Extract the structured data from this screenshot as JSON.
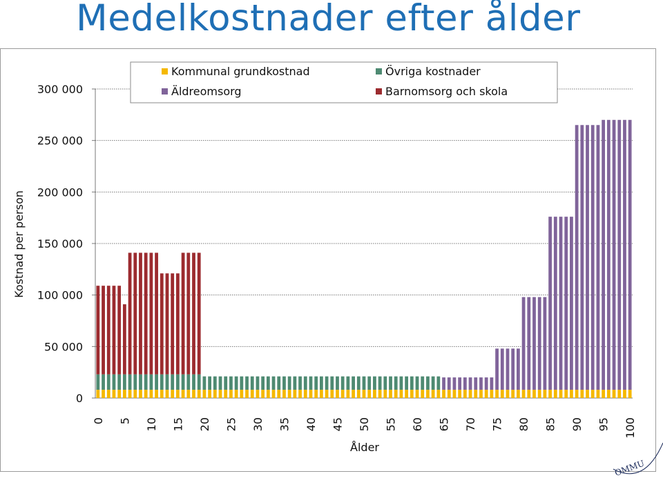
{
  "title": "Medelkostnader efter ålder",
  "chart_data": {
    "type": "bar",
    "stacked": true,
    "x": [
      0,
      1,
      2,
      3,
      4,
      5,
      6,
      7,
      8,
      9,
      10,
      11,
      12,
      13,
      14,
      15,
      16,
      17,
      18,
      19,
      20,
      21,
      22,
      23,
      24,
      25,
      26,
      27,
      28,
      29,
      30,
      31,
      32,
      33,
      34,
      35,
      36,
      37,
      38,
      39,
      40,
      41,
      42,
      43,
      44,
      45,
      46,
      47,
      48,
      49,
      50,
      51,
      52,
      53,
      54,
      55,
      56,
      57,
      58,
      59,
      60,
      61,
      62,
      63,
      64,
      65,
      66,
      67,
      68,
      69,
      70,
      71,
      72,
      73,
      74,
      75,
      76,
      77,
      78,
      79,
      80,
      81,
      82,
      83,
      84,
      85,
      86,
      87,
      88,
      89,
      90,
      91,
      92,
      93,
      94,
      95,
      96,
      97,
      98,
      99,
      100
    ],
    "xticks": [
      "0",
      "5",
      "10",
      "15",
      "20",
      "25",
      "30",
      "35",
      "40",
      "45",
      "50",
      "55",
      "60",
      "65",
      "70",
      "75",
      "80",
      "85",
      "90",
      "95",
      "100"
    ],
    "xlabel": "Ålder",
    "ylabel": "Kostnad per person",
    "ylim": [
      0,
      300000
    ],
    "yticks": [
      "0",
      "50 000",
      "100 000",
      "150 000",
      "200 000",
      "250 000",
      "300 000"
    ],
    "ytick_values": [
      0,
      50000,
      100000,
      150000,
      200000,
      250000,
      300000
    ],
    "grid": "horizontal dotted",
    "legend_position": "top",
    "series": [
      {
        "name": "Kommunal grundkostnad",
        "color": "#f5b800",
        "values": [
          8000,
          8000,
          8000,
          8000,
          8000,
          8000,
          8000,
          8000,
          8000,
          8000,
          8000,
          8000,
          8000,
          8000,
          8000,
          8000,
          8000,
          8000,
          8000,
          8000,
          8000,
          8000,
          8000,
          8000,
          8000,
          8000,
          8000,
          8000,
          8000,
          8000,
          8000,
          8000,
          8000,
          8000,
          8000,
          8000,
          8000,
          8000,
          8000,
          8000,
          8000,
          8000,
          8000,
          8000,
          8000,
          8000,
          8000,
          8000,
          8000,
          8000,
          8000,
          8000,
          8000,
          8000,
          8000,
          8000,
          8000,
          8000,
          8000,
          8000,
          8000,
          8000,
          8000,
          8000,
          8000,
          8000,
          8000,
          8000,
          8000,
          8000,
          8000,
          8000,
          8000,
          8000,
          8000,
          8000,
          8000,
          8000,
          8000,
          8000,
          8000,
          8000,
          8000,
          8000,
          8000,
          8000,
          8000,
          8000,
          8000,
          8000,
          8000,
          8000,
          8000,
          8000,
          8000,
          8000,
          8000,
          8000,
          8000,
          8000,
          8000
        ]
      },
      {
        "name": "Övriga kostnader",
        "color": "#4e8a72",
        "values": [
          15000,
          15000,
          15000,
          15000,
          15000,
          15000,
          15000,
          15000,
          15000,
          15000,
          15000,
          15000,
          15000,
          15000,
          15000,
          15000,
          15000,
          15000,
          15000,
          15000,
          13000,
          13000,
          13000,
          13000,
          13000,
          13000,
          13000,
          13000,
          13000,
          13000,
          13000,
          13000,
          13000,
          13000,
          13000,
          13000,
          13000,
          13000,
          13000,
          13000,
          13000,
          13000,
          13000,
          13000,
          13000,
          13000,
          13000,
          13000,
          13000,
          13000,
          13000,
          13000,
          13000,
          13000,
          13000,
          13000,
          13000,
          13000,
          13000,
          13000,
          13000,
          13000,
          13000,
          13000,
          13000,
          0,
          0,
          0,
          0,
          0,
          0,
          0,
          0,
          0,
          0,
          0,
          0,
          0,
          0,
          0,
          0,
          0,
          0,
          0,
          0,
          0,
          0,
          0,
          0,
          0,
          0,
          0,
          0,
          0,
          0,
          0,
          0,
          0,
          0,
          0,
          0
        ]
      },
      {
        "name": "Äldreomsorg",
        "color": "#80649a",
        "values": [
          0,
          0,
          0,
          0,
          0,
          0,
          0,
          0,
          0,
          0,
          0,
          0,
          0,
          0,
          0,
          0,
          0,
          0,
          0,
          0,
          0,
          0,
          0,
          0,
          0,
          0,
          0,
          0,
          0,
          0,
          0,
          0,
          0,
          0,
          0,
          0,
          0,
          0,
          0,
          0,
          0,
          0,
          0,
          0,
          0,
          0,
          0,
          0,
          0,
          0,
          0,
          0,
          0,
          0,
          0,
          0,
          0,
          0,
          0,
          0,
          0,
          0,
          0,
          0,
          0,
          12000,
          12000,
          12000,
          12000,
          12000,
          12000,
          12000,
          12000,
          12000,
          12000,
          40000,
          40000,
          40000,
          40000,
          40000,
          90000,
          90000,
          90000,
          90000,
          90000,
          168000,
          168000,
          168000,
          168000,
          168000,
          257000,
          257000,
          257000,
          257000,
          257000,
          262000,
          262000,
          262000,
          262000,
          262000,
          262000
        ]
      },
      {
        "name": "Barnomsorg och skola",
        "color": "#9c2b2f",
        "values": [
          86000,
          86000,
          86000,
          86000,
          86000,
          68000,
          118000,
          118000,
          118000,
          118000,
          118000,
          118000,
          98000,
          98000,
          98000,
          98000,
          118000,
          118000,
          118000,
          118000,
          0,
          0,
          0,
          0,
          0,
          0,
          0,
          0,
          0,
          0,
          0,
          0,
          0,
          0,
          0,
          0,
          0,
          0,
          0,
          0,
          0,
          0,
          0,
          0,
          0,
          0,
          0,
          0,
          0,
          0,
          0,
          0,
          0,
          0,
          0,
          0,
          0,
          0,
          0,
          0,
          0,
          0,
          0,
          0,
          0,
          0,
          0,
          0,
          0,
          0,
          0,
          0,
          0,
          0,
          0,
          0,
          0,
          0,
          0,
          0,
          0,
          0,
          0,
          0,
          0,
          0,
          0,
          0,
          0,
          0,
          0,
          0,
          0,
          0,
          0,
          0,
          0,
          0,
          0,
          0,
          0
        ]
      }
    ]
  },
  "seal_text": "KOMMUN"
}
